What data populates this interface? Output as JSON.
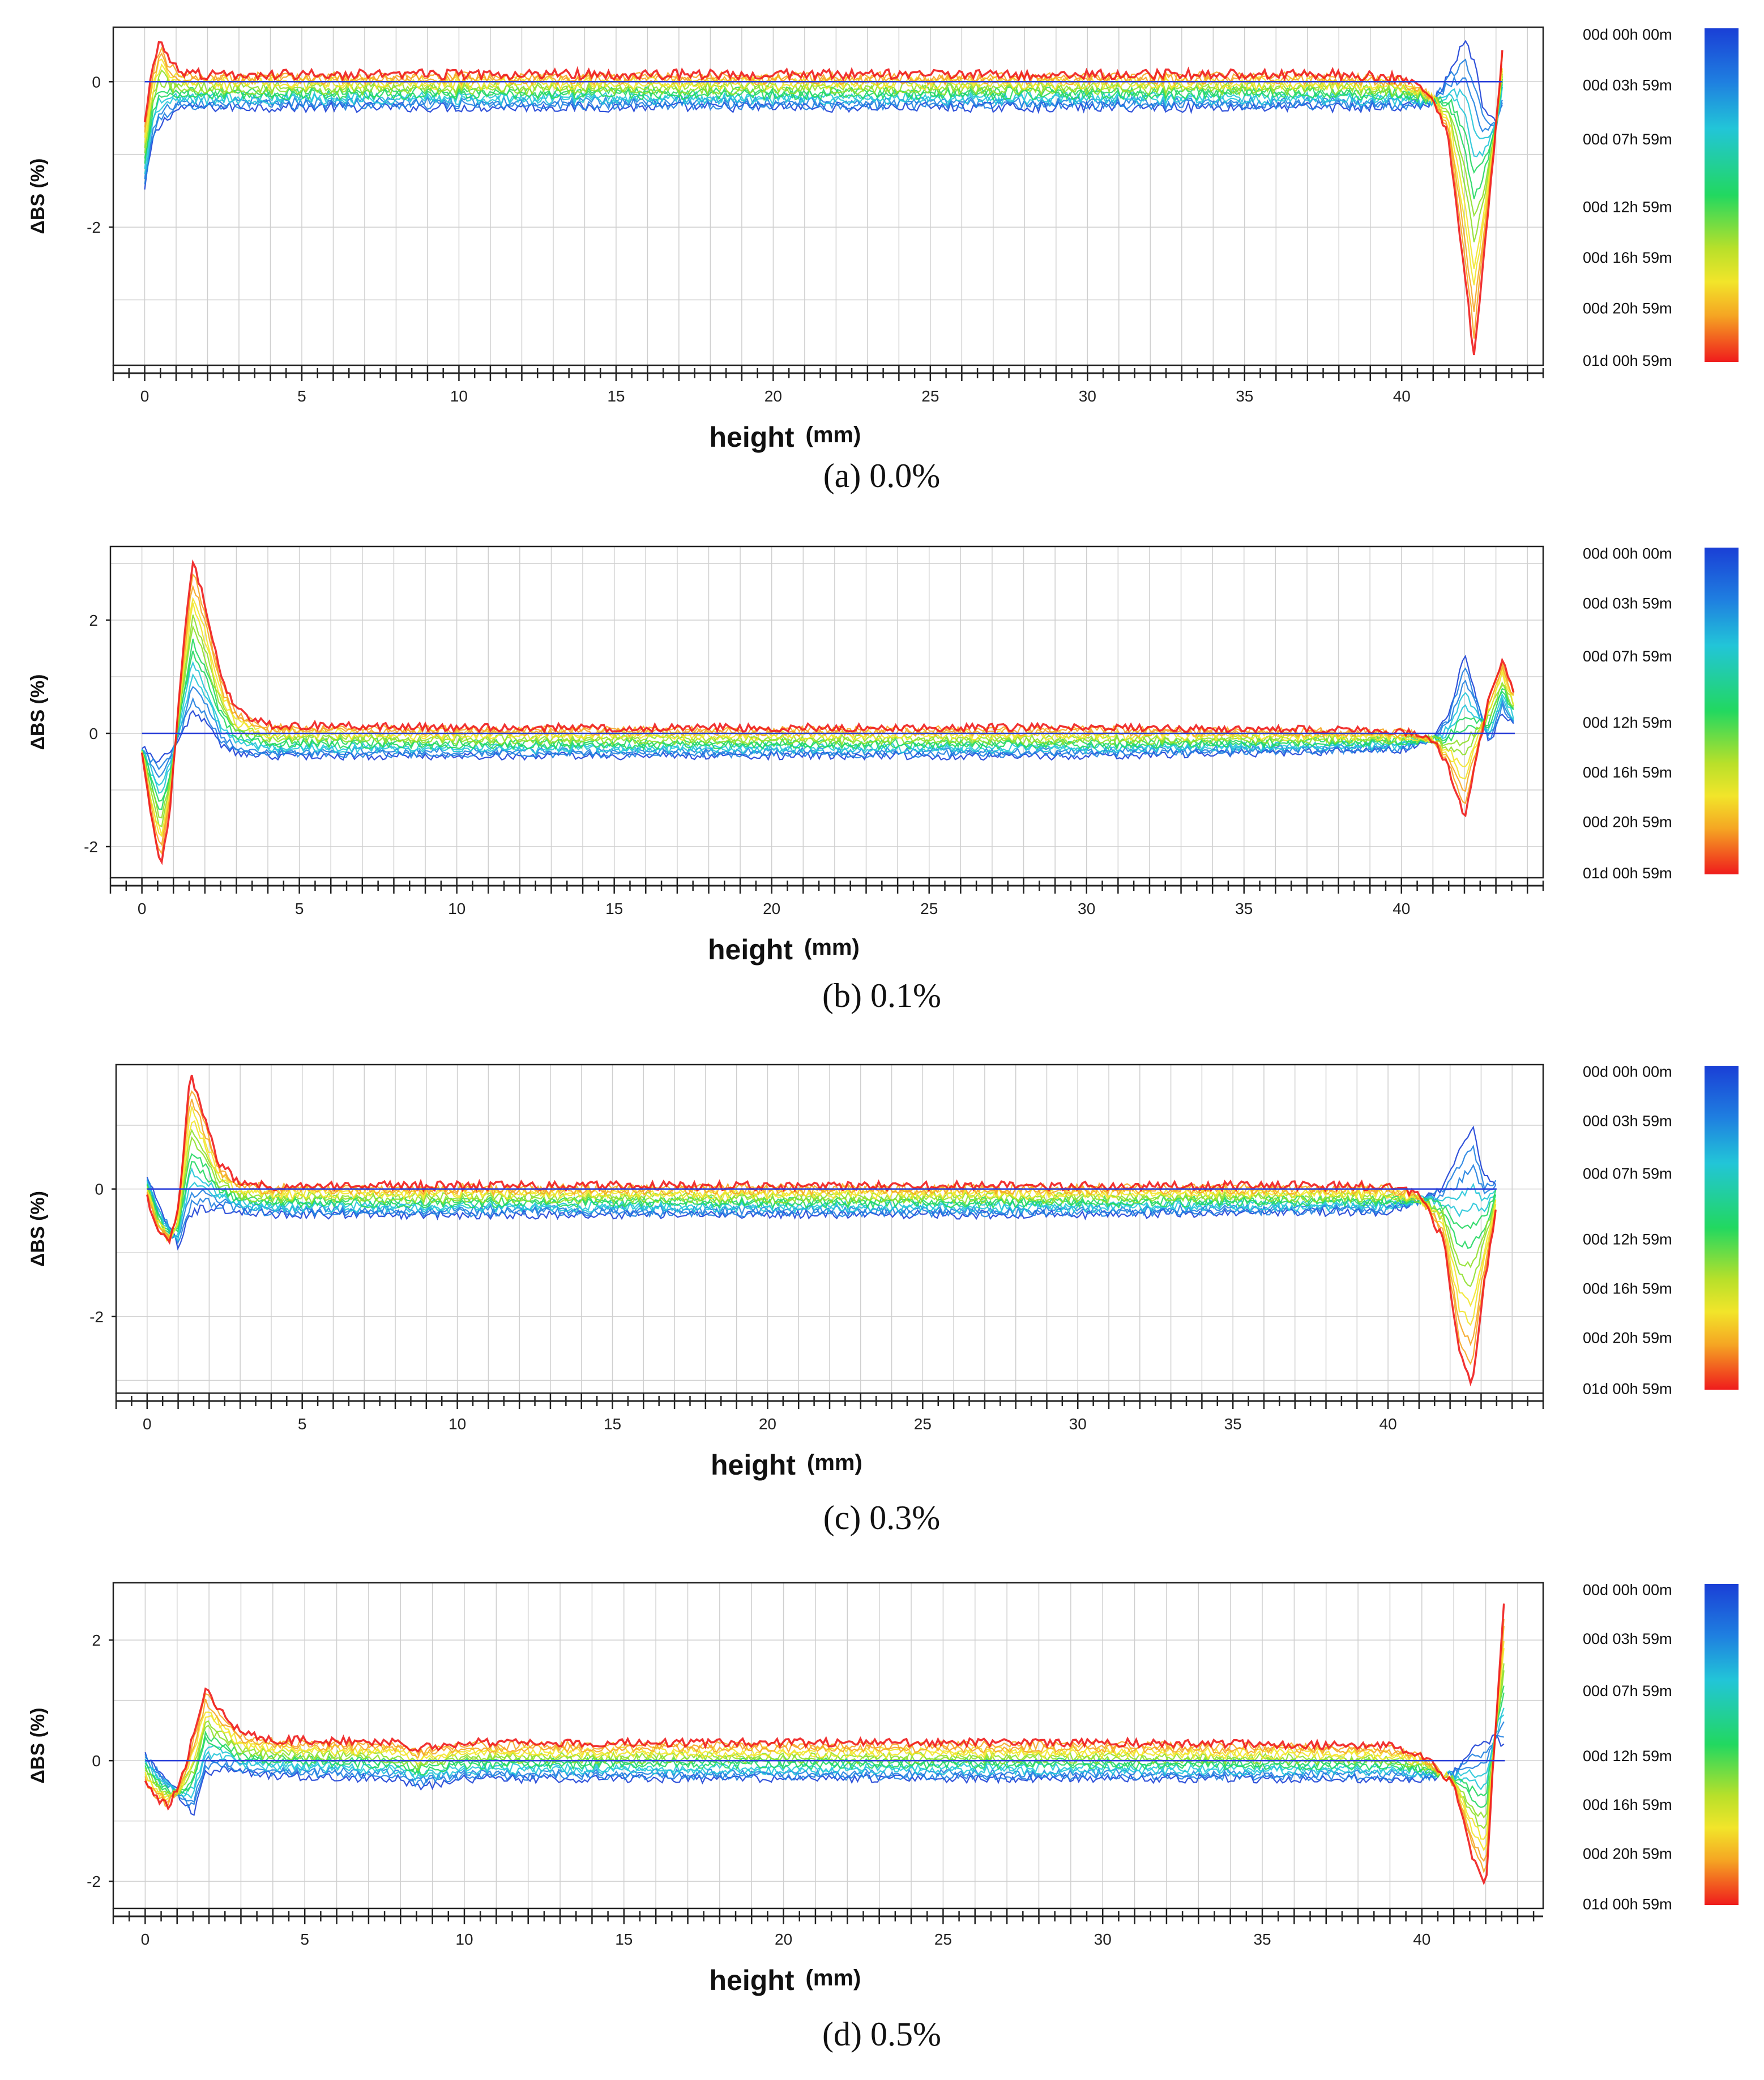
{
  "chart_data": [
    {
      "type": "line",
      "panel": "a",
      "caption": "(a)  0.0%",
      "ylabel": "ΔBS (%)",
      "xlabel": "height",
      "xunit": "(mm)",
      "xlim": [
        -1,
        44.5
      ],
      "ylim": [
        -3.9,
        0.75
      ],
      "xticks": [
        0,
        5,
        10,
        15,
        20,
        25,
        30,
        35,
        40
      ],
      "yticks": [
        0,
        -2
      ],
      "legend": [
        "00d 00h 00m",
        "00d 03h 59m",
        "00d 07h 59m",
        "00d 12h 59m",
        "00d 16h 59m",
        "00d 20h 59m",
        "01d 00h 59m"
      ],
      "profile": {
        "x": [
          0,
          0.25,
          0.5,
          0.8,
          1.2,
          2,
          5,
          10,
          20,
          30,
          38,
          40,
          41,
          41.5,
          42,
          42.3,
          42.6,
          43,
          43.2
        ],
        "final": [
          -0.6,
          0.2,
          0.55,
          0.25,
          0.12,
          0.1,
          0.1,
          0.1,
          0.1,
          0.1,
          0.1,
          0.05,
          -0.2,
          -0.8,
          -2.6,
          -3.8,
          -2.4,
          -0.6,
          0.4
        ],
        "early": [
          -1.5,
          -0.8,
          -0.6,
          -0.45,
          -0.35,
          -0.35,
          -0.35,
          -0.35,
          -0.35,
          -0.35,
          -0.35,
          -0.35,
          -0.3,
          0.1,
          0.55,
          0.3,
          -0.4,
          -0.6,
          -0.3
        ]
      }
    },
    {
      "type": "line",
      "panel": "b",
      "caption": "(b)  0.1%",
      "ylabel": "ΔBS (%)",
      "xlabel": "height",
      "xunit": "(mm)",
      "xlim": [
        -1,
        44.5
      ],
      "ylim": [
        -2.55,
        3.3
      ],
      "xticks": [
        0,
        5,
        10,
        15,
        20,
        25,
        30,
        35,
        40
      ],
      "yticks": [
        2,
        0,
        -2
      ],
      "legend": [
        "00d 00h 00m",
        "00d 03h 59m",
        "00d 07h 59m",
        "00d 12h 59m",
        "00d 16h 59m",
        "00d 20h 59m",
        "01d 00h 59m"
      ],
      "profile": {
        "x": [
          0,
          0.3,
          0.6,
          0.9,
          1.2,
          1.6,
          2,
          2.5,
          3,
          4,
          10,
          20,
          30,
          40,
          41,
          41.5,
          42,
          42.4,
          42.8,
          43.2,
          43.6
        ],
        "final": [
          -0.3,
          -1.5,
          -2.4,
          -1.3,
          0.8,
          3.1,
          2.3,
          1.0,
          0.4,
          0.15,
          0.1,
          0.1,
          0.1,
          0.05,
          -0.1,
          -0.6,
          -1.5,
          -0.4,
          0.7,
          1.3,
          0.7
        ],
        "early": [
          -0.2,
          -0.4,
          -0.5,
          -0.3,
          -0.1,
          0.4,
          0.2,
          -0.2,
          -0.35,
          -0.4,
          -0.4,
          -0.4,
          -0.4,
          -0.3,
          -0.1,
          0.3,
          1.4,
          0.6,
          -0.2,
          0.4,
          0.1
        ]
      }
    },
    {
      "type": "line",
      "panel": "c",
      "caption": "(c)  0.3%",
      "ylabel": "ΔBS (%)",
      "xlabel": "height",
      "xunit": "(mm)",
      "xlim": [
        -1,
        45
      ],
      "ylim": [
        -3.2,
        1.95
      ],
      "xticks": [
        0,
        5,
        10,
        15,
        20,
        25,
        30,
        35,
        40
      ],
      "yticks": [
        0,
        -2
      ],
      "legend": [
        "00d 00h 00m",
        "00d 03h 59m",
        "00d 07h 59m",
        "00d 12h 59m",
        "00d 16h 59m",
        "00d 20h 59m",
        "01d 00h 59m"
      ],
      "profile": {
        "x": [
          0,
          0.3,
          0.7,
          1.0,
          1.4,
          1.8,
          2.3,
          3,
          4,
          10,
          20,
          30,
          40,
          41,
          41.8,
          42.3,
          42.7,
          43.1,
          43.5
        ],
        "final": [
          -0.1,
          -0.6,
          -0.85,
          -0.3,
          1.8,
          1.2,
          0.4,
          0.1,
          0.05,
          0.05,
          0.05,
          0.05,
          0.05,
          -0.1,
          -0.8,
          -2.6,
          -3.1,
          -1.5,
          -0.3
        ],
        "early": [
          0.2,
          -0.2,
          -0.6,
          -0.9,
          -0.4,
          -0.3,
          -0.3,
          -0.35,
          -0.4,
          -0.4,
          -0.4,
          -0.4,
          -0.35,
          -0.2,
          0.05,
          0.6,
          1.0,
          0.2,
          0.1
        ]
      }
    },
    {
      "type": "line",
      "panel": "d",
      "caption": "(d)  0.5%",
      "ylabel": "ΔBS (%)",
      "xlabel": "height",
      "xunit": "(mm)",
      "xlim": [
        -1,
        43.8
      ],
      "ylim": [
        -2.45,
        2.95
      ],
      "xticks": [
        0,
        5,
        10,
        15,
        20,
        25,
        30,
        35,
        40
      ],
      "yticks": [
        2,
        0,
        -2
      ],
      "legend": [
        "00d 00h 00m",
        "00d 03h 59m",
        "00d 07h 59m",
        "00d 12h 59m",
        "00d 16h 59m",
        "00d 20h 59m",
        "01d 00h 59m"
      ],
      "profile": {
        "x": [
          0,
          0.3,
          0.7,
          1.1,
          1.5,
          1.9,
          2.4,
          3,
          4,
          8,
          8.5,
          10,
          20,
          30,
          39,
          40,
          41,
          41.6,
          42,
          42.3,
          42.6
        ],
        "final": [
          -0.4,
          -0.6,
          -0.75,
          -0.4,
          0.4,
          1.2,
          0.8,
          0.45,
          0.35,
          0.3,
          0.2,
          0.3,
          0.3,
          0.3,
          0.25,
          0.1,
          -0.4,
          -1.6,
          -2.1,
          0.5,
          2.8
        ],
        "early": [
          0.1,
          -0.1,
          -0.3,
          -0.6,
          -0.9,
          -0.2,
          -0.15,
          -0.2,
          -0.25,
          -0.3,
          -0.45,
          -0.3,
          -0.3,
          -0.3,
          -0.3,
          -0.3,
          -0.2,
          0.2,
          0.3,
          0.4,
          0.2
        ]
      }
    }
  ],
  "colors": {
    "scale": [
      "#1a3fd6",
      "#1f7fe0",
      "#22c5d8",
      "#22d860",
      "#8ee02a",
      "#f2e52a",
      "#f5a623",
      "#ef1c1c"
    ],
    "grid": "#cfcfcf",
    "axis": "#222222",
    "baseline": "#2a3fd8"
  }
}
